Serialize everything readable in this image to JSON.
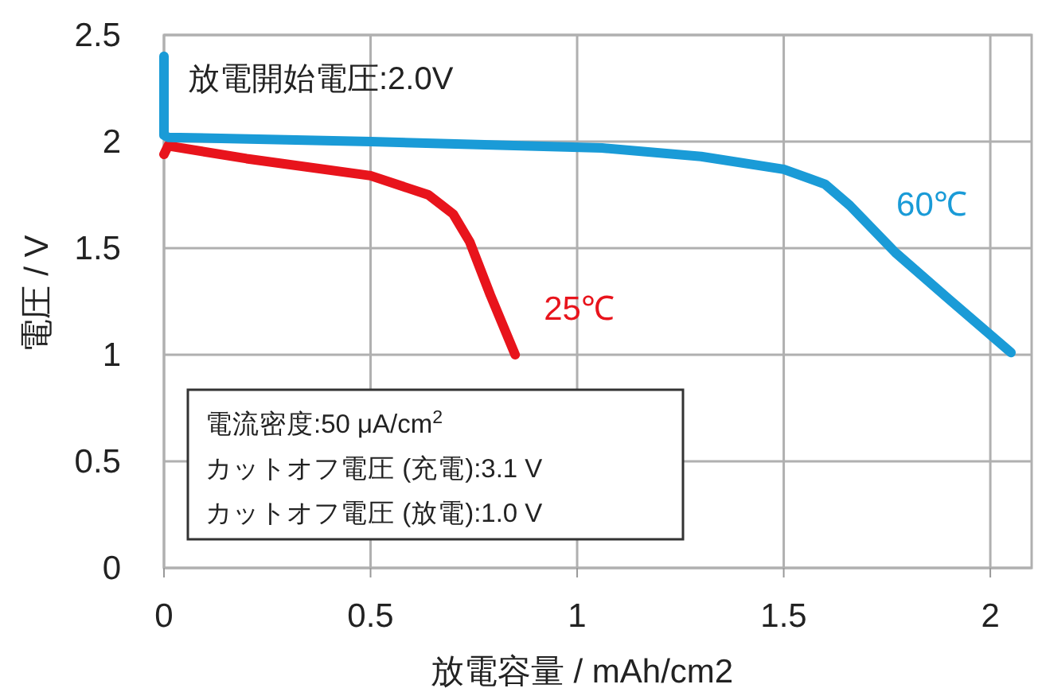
{
  "chart_data": {
    "type": "line",
    "xlabel": "放電容量 / mAh/cm2",
    "ylabel": "電圧 / V",
    "xlim": [
      0,
      2.1
    ],
    "ylim": [
      0,
      2.5
    ],
    "xticks": [
      0,
      0.5,
      1,
      1.5,
      2
    ],
    "yticks": [
      0,
      0.5,
      1,
      1.5,
      2,
      2.5
    ],
    "grid": true,
    "line_style": "solid",
    "series": [
      {
        "name": "25℃",
        "color": "#e8141c",
        "x": [
          0,
          0.01,
          0.2,
          0.5,
          0.64,
          0.7,
          0.74,
          0.79,
          0.85
        ],
        "values": [
          1.94,
          1.98,
          1.92,
          1.84,
          1.75,
          1.66,
          1.53,
          1.28,
          1.0
        ]
      },
      {
        "name": "60℃",
        "color": "#1a9bd7",
        "x": [
          0,
          0,
          0.01,
          0.5,
          1.06,
          1.3,
          1.5,
          1.6,
          1.66,
          1.77,
          1.9,
          2.05
        ],
        "values": [
          2.4,
          2.03,
          2.02,
          2.0,
          1.97,
          1.93,
          1.87,
          1.8,
          1.7,
          1.48,
          1.26,
          1.01
        ]
      }
    ],
    "annotations": [
      "放電開始電圧:2.0V",
      "電流密度:50 μA/cm$^{2}$",
      "カットオフ電圧 (充電):3.1 V",
      "カットオフ電圧 (放電):1.0 V"
    ]
  }
}
